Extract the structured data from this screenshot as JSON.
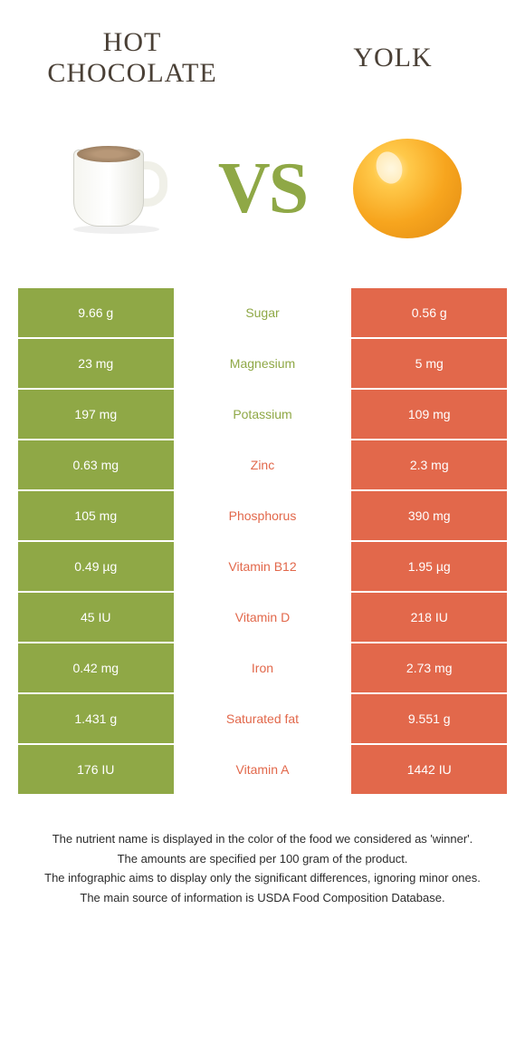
{
  "titles": {
    "left": "HOT CHOCOLATE",
    "right": "YOLK"
  },
  "vs_text": "VS",
  "colors": {
    "green": "#8fa846",
    "orange": "#e2684b",
    "white": "#ffffff"
  },
  "rows": [
    {
      "left_val": "9.66 g",
      "name": "Sugar",
      "right_val": "0.56 g",
      "winner": "left"
    },
    {
      "left_val": "23 mg",
      "name": "Magnesium",
      "right_val": "5 mg",
      "winner": "left"
    },
    {
      "left_val": "197 mg",
      "name": "Potassium",
      "right_val": "109 mg",
      "winner": "left"
    },
    {
      "left_val": "0.63 mg",
      "name": "Zinc",
      "right_val": "2.3 mg",
      "winner": "right"
    },
    {
      "left_val": "105 mg",
      "name": "Phosphorus",
      "right_val": "390 mg",
      "winner": "right"
    },
    {
      "left_val": "0.49 µg",
      "name": "Vitamin B12",
      "right_val": "1.95 µg",
      "winner": "right"
    },
    {
      "left_val": "45 IU",
      "name": "Vitamin D",
      "right_val": "218 IU",
      "winner": "right"
    },
    {
      "left_val": "0.42 mg",
      "name": "Iron",
      "right_val": "2.73 mg",
      "winner": "right"
    },
    {
      "left_val": "1.431 g",
      "name": "Saturated fat",
      "right_val": "9.551 g",
      "winner": "right"
    },
    {
      "left_val": "176 IU",
      "name": "Vitamin A",
      "right_val": "1442 IU",
      "winner": "right"
    }
  ],
  "footer": [
    "The nutrient name is displayed in the color of the food we considered as 'winner'.",
    "The amounts are specified per 100 gram of the product.",
    "The infographic aims to display only the significant differences, ignoring minor ones.",
    "The main source of information is USDA Food Composition Database."
  ]
}
